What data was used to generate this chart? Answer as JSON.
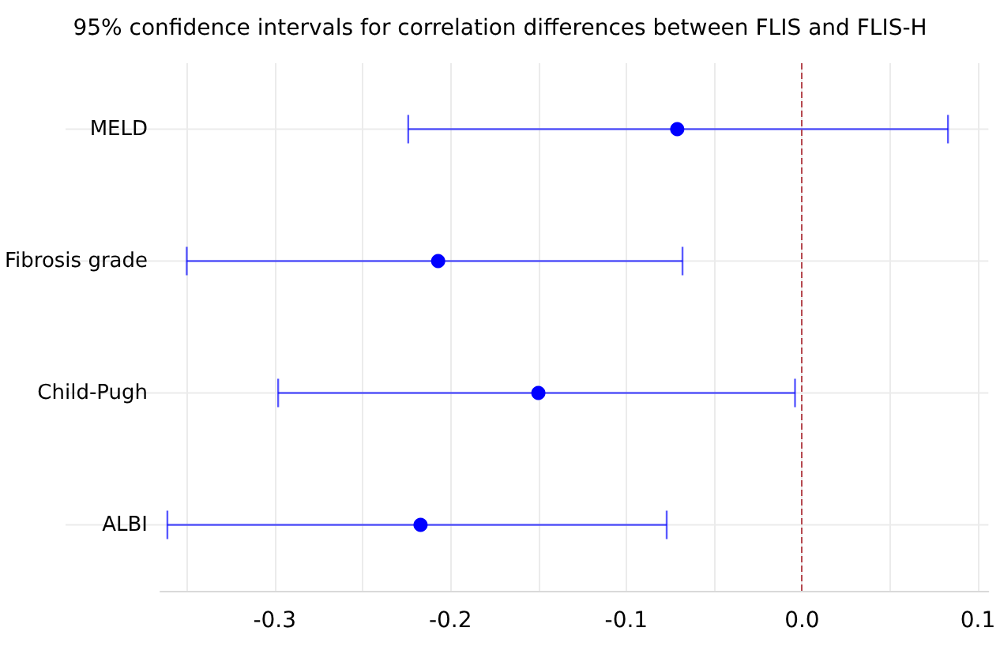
{
  "chart_data": {
    "type": "scatter",
    "title": "95% confidence intervals for correlation differences between FLIS and FLIS-H",
    "categories": [
      "MELD",
      "Fibrosis grade",
      "Child-Pugh",
      "ALBI"
    ],
    "orientation": "horizontal",
    "color": "#0000ff",
    "values": [
      -0.071,
      -0.207,
      -0.15,
      -0.217
    ],
    "errors": [
      [
        -0.224,
        0.083
      ],
      [
        -0.35,
        -0.068
      ],
      [
        -0.298,
        -0.004
      ],
      [
        -0.361,
        -0.077
      ]
    ],
    "xlim": [
      -0.365,
      0.106
    ],
    "xticks": [
      {
        "value": -0.35,
        "label": null
      },
      -0.3,
      {
        "value": -0.25,
        "label": null
      },
      -0.2,
      {
        "value": -0.15,
        "label": null
      },
      -0.1,
      {
        "value": -0.05,
        "label": null
      },
      {
        "value": 0.0,
        "label": "0.0"
      },
      {
        "value": 0.05,
        "label": null
      },
      0.1
    ],
    "ref_lines": [
      {
        "axis": "x",
        "value": 0,
        "label": null,
        "color": "#b5484f",
        "line_style": "dashed"
      }
    ],
    "grid": true,
    "marker": "circle"
  }
}
